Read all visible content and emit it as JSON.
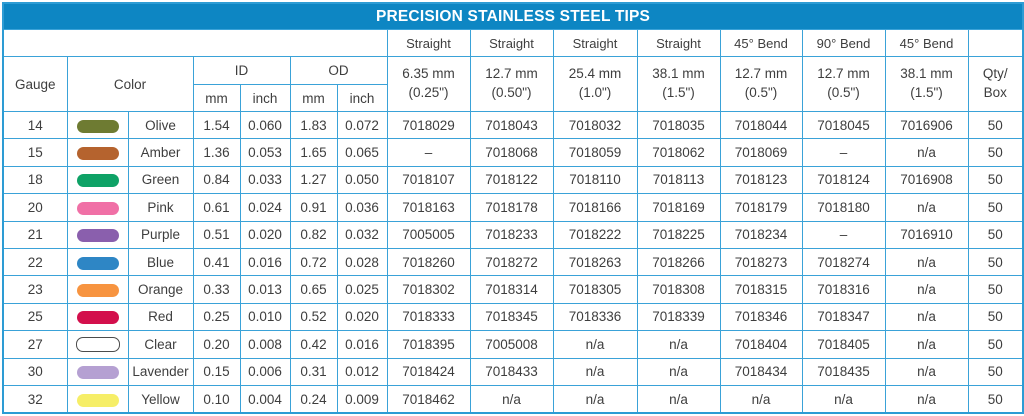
{
  "title": "PRECISION STAINLESS STEEL TIPS",
  "colors": {
    "title_bar": "#0d86c3",
    "grid_border": "#3aa2d8",
    "text": "#3e3e3e"
  },
  "header": {
    "gauge": "Gauge",
    "color": "Color",
    "id": "ID",
    "od": "OD",
    "mm": "mm",
    "inch": "inch",
    "qty": "Qty/\nBox",
    "tip_columns": [
      {
        "type": "Straight",
        "size": "6.35 mm\n(0.25\")"
      },
      {
        "type": "Straight",
        "size": "12.7 mm\n(0.50\")"
      },
      {
        "type": "Straight",
        "size": "25.4 mm\n(1.0\")"
      },
      {
        "type": "Straight",
        "size": "38.1 mm\n(1.5\")"
      },
      {
        "type": "45° Bend",
        "size": "12.7 mm\n(0.5\")"
      },
      {
        "type": "90° Bend",
        "size": "12.7 mm\n(0.5\")"
      },
      {
        "type": "45° Bend",
        "size": "38.1 mm\n(1.5\")"
      }
    ]
  },
  "rows": [
    {
      "gauge": "14",
      "color_name": "Olive",
      "swatch": "#6e7b32",
      "id_mm": "1.54",
      "id_inch": "0.060",
      "od_mm": "1.83",
      "od_inch": "0.072",
      "parts": [
        "7018029",
        "7018043",
        "7018032",
        "7018035",
        "7018044",
        "7018045",
        "7016906"
      ],
      "qty": "50"
    },
    {
      "gauge": "15",
      "color_name": "Amber",
      "swatch": "#b5632e",
      "id_mm": "1.36",
      "id_inch": "0.053",
      "od_mm": "1.65",
      "od_inch": "0.065",
      "parts": [
        "–",
        "7018068",
        "7018059",
        "7018062",
        "7018069",
        "–",
        "n/a"
      ],
      "qty": "50"
    },
    {
      "gauge": "18",
      "color_name": "Green",
      "swatch": "#0ea266",
      "id_mm": "0.84",
      "id_inch": "0.033",
      "od_mm": "1.27",
      "od_inch": "0.050",
      "parts": [
        "7018107",
        "7018122",
        "7018110",
        "7018113",
        "7018123",
        "7018124",
        "7016908"
      ],
      "qty": "50"
    },
    {
      "gauge": "20",
      "color_name": "Pink",
      "swatch": "#f070a6",
      "id_mm": "0.61",
      "id_inch": "0.024",
      "od_mm": "0.91",
      "od_inch": "0.036",
      "parts": [
        "7018163",
        "7018178",
        "7018166",
        "7018169",
        "7018179",
        "7018180",
        "n/a"
      ],
      "qty": "50"
    },
    {
      "gauge": "21",
      "color_name": "Purple",
      "swatch": "#8a5fad",
      "id_mm": "0.51",
      "id_inch": "0.020",
      "od_mm": "0.82",
      "od_inch": "0.032",
      "parts": [
        "7005005",
        "7018233",
        "7018222",
        "7018225",
        "7018234",
        "–",
        "7016910"
      ],
      "qty": "50"
    },
    {
      "gauge": "22",
      "color_name": "Blue",
      "swatch": "#2e86c5",
      "id_mm": "0.41",
      "id_inch": "0.016",
      "od_mm": "0.72",
      "od_inch": "0.028",
      "parts": [
        "7018260",
        "7018272",
        "7018263",
        "7018266",
        "7018273",
        "7018274",
        "n/a"
      ],
      "qty": "50"
    },
    {
      "gauge": "23",
      "color_name": "Orange",
      "swatch": "#f79440",
      "id_mm": "0.33",
      "id_inch": "0.013",
      "od_mm": "0.65",
      "od_inch": "0.025",
      "parts": [
        "7018302",
        "7018314",
        "7018305",
        "7018308",
        "7018315",
        "7018316",
        "n/a"
      ],
      "qty": "50"
    },
    {
      "gauge": "25",
      "color_name": "Red",
      "swatch": "#d30f4c",
      "id_mm": "0.25",
      "id_inch": "0.010",
      "od_mm": "0.52",
      "od_inch": "0.020",
      "parts": [
        "7018333",
        "7018345",
        "7018336",
        "7018339",
        "7018346",
        "7018347",
        "n/a"
      ],
      "qty": "50"
    },
    {
      "gauge": "27",
      "color_name": "Clear",
      "swatch": "#ffffff",
      "swatch_border": "#4c4c4c",
      "id_mm": "0.20",
      "id_inch": "0.008",
      "od_mm": "0.42",
      "od_inch": "0.016",
      "parts": [
        "7018395",
        "7005008",
        "n/a",
        "n/a",
        "7018404",
        "7018405",
        "n/a"
      ],
      "qty": "50"
    },
    {
      "gauge": "30",
      "color_name": "Lavender",
      "swatch": "#b5a0d2",
      "id_mm": "0.15",
      "id_inch": "0.006",
      "od_mm": "0.31",
      "od_inch": "0.012",
      "parts": [
        "7018424",
        "7018433",
        "n/a",
        "n/a",
        "7018434",
        "7018435",
        "n/a"
      ],
      "qty": "50"
    },
    {
      "gauge": "32",
      "color_name": "Yellow",
      "swatch": "#f6ee67",
      "id_mm": "0.10",
      "id_inch": "0.004",
      "od_mm": "0.24",
      "od_inch": "0.009",
      "parts": [
        "7018462",
        "n/a",
        "n/a",
        "n/a",
        "n/a",
        "n/a",
        "n/a"
      ],
      "qty": "50"
    }
  ]
}
